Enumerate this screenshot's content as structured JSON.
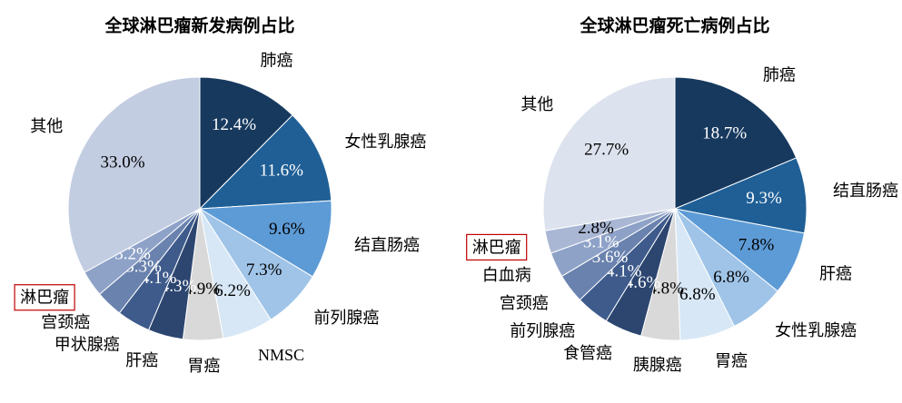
{
  "chart_data": [
    {
      "type": "pie",
      "title": "全球淋巴瘤新发病例占比",
      "categories": [
        "肺癌",
        "女性乳腺癌",
        "结直肠癌",
        "前列腺癌",
        "NMSC",
        "胃癌",
        "肝癌",
        "甲状腺癌",
        "宫颈癌",
        "淋巴瘤",
        "其他"
      ],
      "values": [
        12.4,
        11.6,
        9.6,
        7.3,
        6.2,
        4.9,
        4.3,
        4.1,
        3.3,
        3.2,
        33.0
      ],
      "value_labels": [
        "12.4%",
        "11.6%",
        "9.6%",
        "7.3%",
        "6.2%",
        "4.9%",
        "4.3%",
        "4.1%",
        "3.3%",
        "3.2%",
        "33.0%"
      ],
      "colors": [
        "#17395e",
        "#1f5f96",
        "#5d9bd6",
        "#9fc4e8",
        "#d7e7f6",
        "#d9d9d9",
        "#2c4670",
        "#3e5b8c",
        "#6a82ae",
        "#8ea2c8",
        "#c3cde2"
      ],
      "highlight": "淋巴瘤"
    },
    {
      "type": "pie",
      "title": "全球淋巴瘤死亡病例占比",
      "categories": [
        "肺癌",
        "结直肠癌",
        "肝癌",
        "女性乳腺癌",
        "胃癌",
        "胰腺癌",
        "食管癌",
        "前列腺癌",
        "宫颈癌",
        "白血病",
        "淋巴瘤",
        "其他"
      ],
      "values": [
        18.7,
        9.3,
        7.8,
        6.8,
        6.8,
        4.8,
        4.6,
        4.1,
        3.6,
        3.1,
        2.8,
        27.7
      ],
      "value_labels": [
        "18.7%",
        "9.3%",
        "7.8%",
        "6.8%",
        "6.8%",
        "4.8%",
        "4.6%",
        "4.1%",
        "3.6%",
        "3.1%",
        "2.8%",
        "27.7%"
      ],
      "colors": [
        "#17395e",
        "#1f5f96",
        "#5d9bd6",
        "#9fc4e8",
        "#d7e7f6",
        "#d9d9d9",
        "#2c4670",
        "#3e5b8c",
        "#6a82ae",
        "#8ea2c8",
        "#a9b7d4",
        "#dde3ee"
      ],
      "highlight": "淋巴瘤"
    }
  ]
}
